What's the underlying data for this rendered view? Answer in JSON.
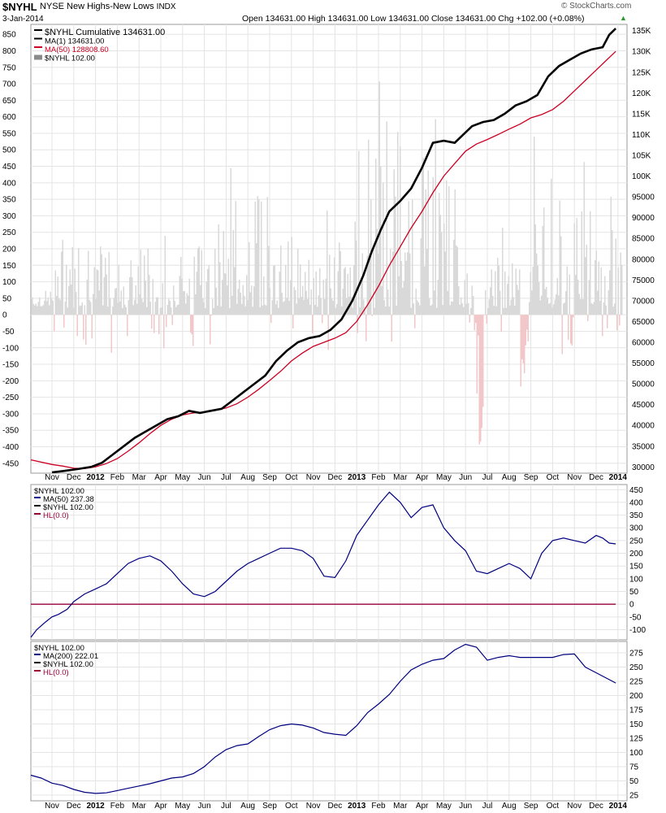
{
  "header": {
    "symbol": "$NYHL",
    "name": "NYSE New Highs-New Lows",
    "exchange": "INDX",
    "date": "3-Jan-2014",
    "watermark": "© StockCharts.com",
    "ohlc_text": "Open 134631.00   High 134631.00   Low 134631.00   Close 134631.00   Chg +102.00 (+0.08%)"
  },
  "panels": {
    "main_legend": [
      "$NYHL  Cumulative 134631.00",
      "MA(1) 134631.00",
      "MA(50) 128808.60",
      "$NYHL 102.00"
    ],
    "mid_legend": [
      "$NYHL 102.00",
      "MA(50) 237.38",
      "$NYHL 102.00",
      "HL(0.0)"
    ],
    "bot_legend": [
      "$NYHL 102.00",
      "MA(200) 222.01",
      "$NYHL 102.00",
      "HL(0.0)"
    ]
  },
  "colors": {
    "cumulative": "#000000",
    "ma50_main": "#cc0022",
    "hist_pos": "#d9d9d9",
    "hist_neg": "#f2c7c9",
    "ma_line": "#000080",
    "hl_line": "#99003a",
    "grid": "#e4e4e4"
  },
  "chart_data": [
    {
      "type": "line",
      "title": "$NYHL NYSE New Highs-New Lows INDX",
      "x_labels": [
        "Nov",
        "Dec",
        "2012",
        "Feb",
        "Mar",
        "Apr",
        "May",
        "Jun",
        "Jul",
        "Aug",
        "Sep",
        "Oct",
        "Nov",
        "Dec",
        "2013",
        "Feb",
        "Mar",
        "Apr",
        "May",
        "Jun",
        "Jul",
        "Aug",
        "Sep",
        "Oct",
        "Nov",
        "Dec",
        "2014"
      ],
      "y_right_ticks": [
        30000,
        35000,
        40000,
        45000,
        50000,
        55000,
        60000,
        65000,
        70000,
        75000,
        80000,
        85000,
        90000,
        95000,
        100000,
        105000,
        110000,
        115000,
        120000,
        125000,
        130000,
        135000
      ],
      "y_right_labels": [
        "30000",
        "35000",
        "40000",
        "45000",
        "50000",
        "55000",
        "60000",
        "65000",
        "70000",
        "75000",
        "80000",
        "85000",
        "90000",
        "95000",
        "100K",
        "105K",
        "110K",
        "115K",
        "120K",
        "125K",
        "130K",
        "135K"
      ],
      "y_left_ticks": [
        -450,
        -400,
        -350,
        -300,
        -250,
        -200,
        -150,
        -100,
        -50,
        0,
        50,
        100,
        150,
        200,
        250,
        300,
        350,
        400,
        450,
        500,
        550,
        600,
        650,
        700,
        750,
        800,
        850
      ],
      "ylim_right": [
        28500,
        136500
      ],
      "ylim_left": [
        -480,
        880
      ],
      "series": [
        {
          "name": "$NYHL Cumulative",
          "axis": "right",
          "x": [
            0,
            0.5,
            1.2,
            1.8,
            2.3,
            2.8,
            3.3,
            3.8,
            4.3,
            4.8,
            5.3,
            5.8,
            6.3,
            6.8,
            7.3,
            7.8,
            8.3,
            8.8,
            9.3,
            9.8,
            10.3,
            10.8,
            11.3,
            11.8,
            12.3,
            12.8,
            13.3,
            13.8,
            14.3,
            14.7,
            15.1,
            15.5,
            16.0,
            16.5,
            17.0,
            17.5,
            18.0,
            18.5,
            18.9,
            19.3,
            19.8,
            20.3,
            20.8,
            21.3,
            21.8,
            22.3,
            22.8,
            23.3,
            23.8,
            24.3,
            24.8,
            25.3,
            25.6,
            25.9
          ],
          "values": [
            28700,
            29000,
            29500,
            30000,
            31000,
            33000,
            35000,
            37000,
            38500,
            40000,
            41500,
            42200,
            43500,
            43000,
            43500,
            44000,
            46000,
            48000,
            50000,
            52000,
            55500,
            58000,
            60000,
            61000,
            61500,
            63000,
            65500,
            70000,
            76000,
            82000,
            87000,
            91500,
            94000,
            97000,
            102000,
            108000,
            108500,
            108000,
            110000,
            112000,
            113000,
            113500,
            115000,
            117000,
            118000,
            119500,
            124000,
            126500,
            128000,
            129500,
            130500,
            131000,
            134000,
            135500
          ]
        },
        {
          "name": "MA(50)",
          "axis": "right",
          "x": [
            -1.0,
            0,
            0.5,
            1.0,
            1.5,
            2.0,
            2.5,
            3.0,
            3.5,
            4.0,
            4.5,
            5.0,
            5.5,
            6.0,
            6.5,
            7.0,
            7.5,
            8.0,
            8.5,
            9.0,
            9.5,
            10.0,
            10.5,
            11.0,
            11.5,
            12.0,
            12.5,
            13.0,
            13.5,
            14.0,
            14.5,
            15.0,
            15.5,
            16.0,
            16.5,
            17.0,
            17.5,
            18.0,
            18.5,
            19.0,
            19.5,
            20.0,
            20.5,
            21.0,
            21.5,
            22.0,
            22.5,
            23.0,
            23.5,
            24.0,
            24.5,
            25.0,
            25.5,
            25.9
          ],
          "values": [
            31700,
            30600,
            30200,
            29700,
            29600,
            30000,
            30800,
            32000,
            33800,
            35800,
            38000,
            40000,
            41500,
            42500,
            43000,
            43200,
            43600,
            44200,
            45200,
            46800,
            48700,
            50800,
            53000,
            55500,
            57400,
            59000,
            60000,
            61000,
            62300,
            65000,
            69000,
            73500,
            78500,
            83000,
            87500,
            91500,
            96000,
            100000,
            103000,
            106000,
            107700,
            108800,
            110000,
            111300,
            112500,
            114000,
            114800,
            116000,
            118000,
            120500,
            123000,
            125500,
            128000,
            130000
          ]
        }
      ]
    },
    {
      "type": "line",
      "title": "$NYHL 102.00",
      "yticks": [
        -100,
        -50,
        0,
        50,
        100,
        150,
        200,
        250,
        300,
        350,
        400,
        450
      ],
      "ylim": [
        -140,
        470
      ],
      "series": [
        {
          "name": "MA(50)",
          "x": [
            -1.0,
            -0.7,
            -0.3,
            0,
            0.3,
            0.7,
            1.0,
            1.5,
            2.0,
            2.5,
            3.0,
            3.5,
            4.0,
            4.5,
            5.0,
            5.5,
            6.0,
            6.5,
            7.0,
            7.5,
            8.0,
            8.5,
            9.0,
            9.5,
            10.0,
            10.5,
            11.0,
            11.5,
            12.0,
            12.5,
            13.0,
            13.5,
            14.0,
            14.5,
            15.0,
            15.5,
            16.0,
            16.5,
            17.0,
            17.5,
            18.0,
            18.5,
            19.0,
            19.5,
            20.0,
            20.5,
            21.0,
            21.5,
            22.0,
            22.5,
            23.0,
            23.5,
            24.0,
            24.5,
            25.0,
            25.3,
            25.6,
            25.9
          ],
          "values": [
            -130,
            -100,
            -70,
            -50,
            -40,
            -20,
            10,
            40,
            60,
            80,
            120,
            160,
            180,
            190,
            170,
            130,
            80,
            40,
            30,
            50,
            90,
            130,
            160,
            180,
            200,
            220,
            220,
            210,
            180,
            110,
            105,
            170,
            270,
            330,
            390,
            440,
            400,
            340,
            380,
            390,
            300,
            250,
            210,
            130,
            120,
            140,
            160,
            140,
            100,
            200,
            250,
            260,
            250,
            240,
            270,
            260,
            240,
            237
          ]
        },
        {
          "name": "HL(0.0)",
          "x": [
            -1.0,
            25.9
          ],
          "values": [
            0,
            0
          ]
        }
      ]
    },
    {
      "type": "line",
      "title": "$NYHL 102.00",
      "yticks": [
        25,
        50,
        75,
        100,
        125,
        150,
        175,
        200,
        225,
        250,
        275
      ],
      "ylim": [
        15,
        295
      ],
      "series": [
        {
          "name": "MA(200)",
          "x": [
            -1.0,
            -0.5,
            0,
            0.5,
            1.0,
            1.5,
            2.0,
            2.5,
            3.0,
            3.5,
            4.0,
            4.5,
            5.0,
            5.5,
            6.0,
            6.5,
            7.0,
            7.5,
            8.0,
            8.5,
            9.0,
            9.5,
            10.0,
            10.5,
            11.0,
            11.5,
            12.0,
            12.5,
            13.0,
            13.5,
            14.0,
            14.5,
            15.0,
            15.5,
            16.0,
            16.5,
            17.0,
            17.5,
            18.0,
            18.5,
            19.0,
            19.5,
            20.0,
            20.5,
            21.0,
            21.5,
            22.0,
            22.5,
            23.0,
            23.5,
            24.0,
            24.5,
            25.0,
            25.5,
            25.9
          ],
          "values": [
            60,
            55,
            46,
            42,
            35,
            30,
            28,
            29,
            33,
            37,
            41,
            45,
            50,
            55,
            57,
            63,
            75,
            92,
            105,
            112,
            115,
            128,
            140,
            147,
            150,
            148,
            143,
            135,
            132,
            130,
            147,
            170,
            185,
            202,
            225,
            245,
            255,
            262,
            265,
            280,
            290,
            285,
            262,
            267,
            270,
            267,
            267,
            267,
            267,
            272,
            273,
            250,
            240,
            230,
            222
          ]
        }
      ]
    }
  ]
}
